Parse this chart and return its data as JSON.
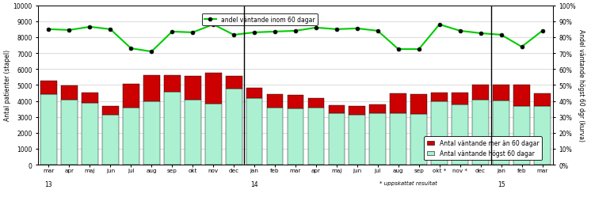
{
  "bar_labels": [
    "mar",
    "apr",
    "maj",
    "jun",
    "jul",
    "aug",
    "sep",
    "okt",
    "nov",
    "dec",
    "jan",
    "feb",
    "mar",
    "apr",
    "maj",
    "jun",
    "jul",
    "aug",
    "sep",
    "okt *",
    "nov *",
    "dec",
    "jan",
    "feb",
    "mar"
  ],
  "under60": [
    4400,
    4100,
    3900,
    3150,
    3600,
    4000,
    4550,
    4100,
    3850,
    4750,
    4150,
    3600,
    3550,
    3600,
    3250,
    3150,
    3250,
    3250,
    3200,
    4000,
    3800,
    4100,
    4050,
    3700,
    3700
  ],
  "over60": [
    850,
    850,
    600,
    550,
    1450,
    1600,
    1050,
    1450,
    1900,
    800,
    650,
    800,
    800,
    550,
    500,
    550,
    550,
    1200,
    1200,
    500,
    700,
    900,
    950,
    1300,
    750
  ],
  "line_vals": [
    8500,
    8450,
    8650,
    8500,
    7300,
    7100,
    8350,
    8300,
    8800,
    8150,
    8300,
    8350,
    8400,
    8600,
    8500,
    8550,
    8400,
    7250,
    7250,
    8800,
    8400,
    8250,
    8150,
    7400,
    8400
  ],
  "bar_color_under": "#aaf0d1",
  "bar_color_over": "#cc0000",
  "line_color": "#00cc00",
  "vline_x": [
    9.5,
    21.5
  ],
  "ylabel_left": "Antal patienter (stapel)",
  "ylabel_right": "Andel väntande högst 60 dgr (kurva)",
  "ylim": [
    0,
    10000
  ],
  "yticks_left": [
    0,
    1000,
    2000,
    3000,
    4000,
    5000,
    6000,
    7000,
    8000,
    9000,
    10000
  ],
  "yticks_right_labels": [
    "0%",
    "10%",
    "20%",
    "30%",
    "40%",
    "50%",
    "60%",
    "70%",
    "80%",
    "90%",
    "100%"
  ],
  "legend_line": "andel väntande inom 60 dagar",
  "legend_over": "Antal väntande mer än 60 dagar",
  "legend_under": "Antal väntande högst 60 dagar",
  "note": "* uppskattat resultat",
  "year_ticks": [
    0,
    10,
    22
  ],
  "year_labels": [
    "13",
    "14",
    "15"
  ],
  "grid_color": "#cccccc",
  "bg_color": "#ffffff"
}
